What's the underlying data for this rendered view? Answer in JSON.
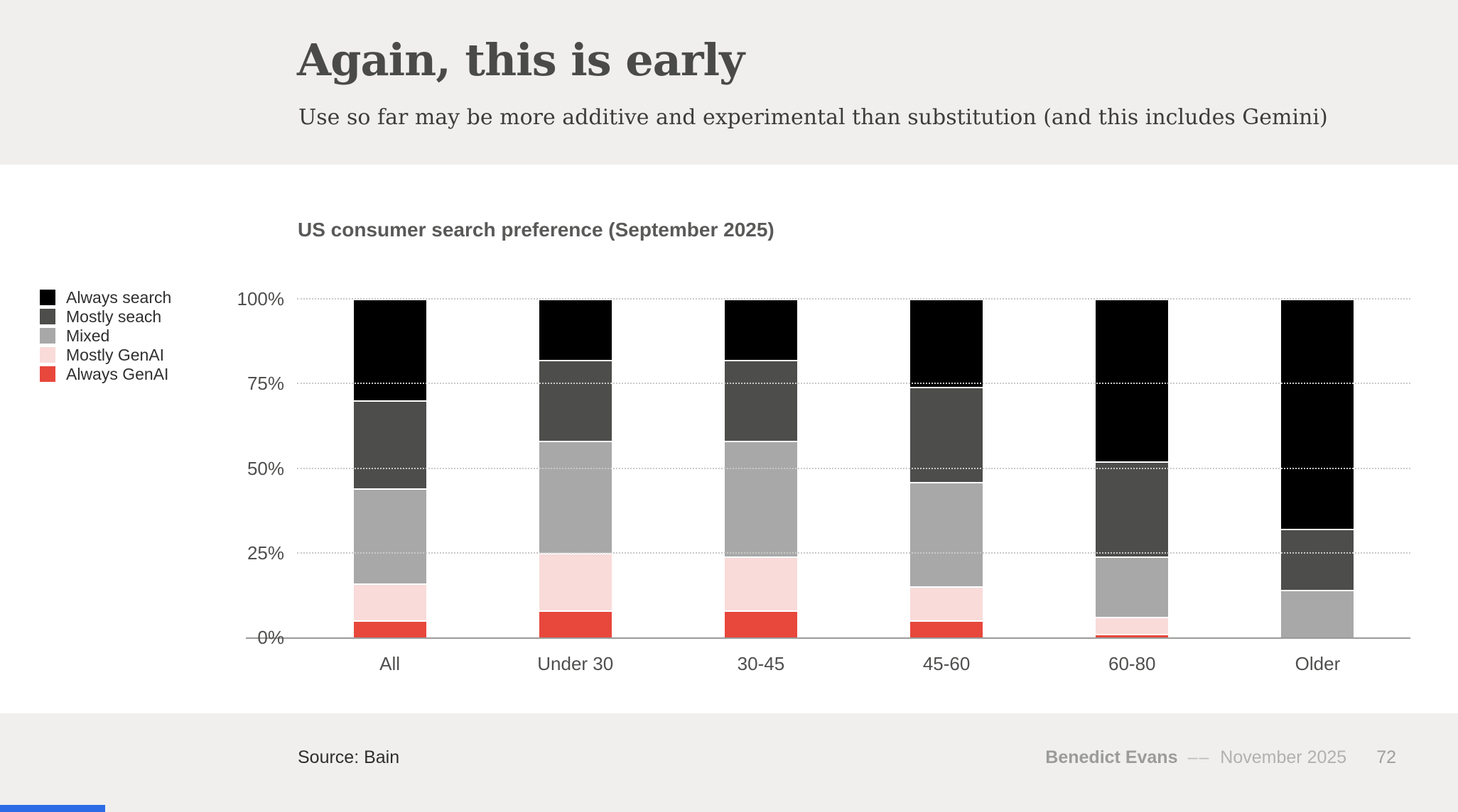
{
  "header": {
    "title": "Again, this is early",
    "subtitle": "Use so far may be more additive and experimental than substitution (and this includes Gemini)"
  },
  "chart_data": {
    "type": "bar",
    "stacked": true,
    "title": "US consumer search preference (September 2025)",
    "categories": [
      "All",
      "Under 30",
      "30-45",
      "45-60",
      "60-80",
      "Older"
    ],
    "series": [
      {
        "name": "Always search",
        "color": "#000000",
        "values": [
          30,
          18,
          18,
          26,
          48,
          68
        ]
      },
      {
        "name": "Mostly seach",
        "color": "#4d4d4c",
        "values": [
          26,
          24,
          24,
          28,
          28,
          18
        ]
      },
      {
        "name": "Mixed",
        "color": "#a9a8a8",
        "values": [
          28,
          33,
          34,
          31,
          18,
          14
        ]
      },
      {
        "name": "Mostly GenAI",
        "color": "#f9dbd9",
        "values": [
          11,
          17,
          16,
          10,
          5,
          0
        ]
      },
      {
        "name": "Always GenAI",
        "color": "#e8473c",
        "values": [
          5,
          8,
          8,
          5,
          1,
          0
        ]
      }
    ],
    "y_ticks": [
      {
        "label": "100%",
        "value": 100
      },
      {
        "label": "75%",
        "value": 75
      },
      {
        "label": "50%",
        "value": 50
      },
      {
        "label": "25%",
        "value": 25
      },
      {
        "label": "0%",
        "value": 0
      }
    ],
    "ylim": [
      0,
      100
    ],
    "legend_position": "left",
    "grid": "dotted-horizontal"
  },
  "footer": {
    "source": "Source: Bain",
    "author": "Benedict Evans",
    "separator": "––",
    "date": "November 2025",
    "page_number": "72"
  },
  "accents": {
    "progress_bar_color": "#2b6ce6",
    "band_background": "#f0efee"
  }
}
